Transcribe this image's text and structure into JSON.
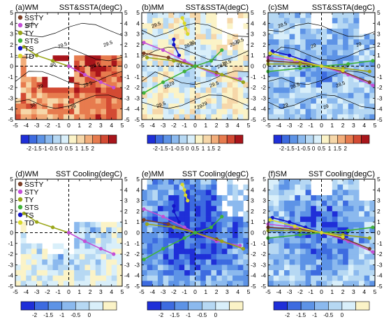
{
  "colors": {
    "SSTY": "#7b3f27",
    "STY": "#c44fd6",
    "TY": "#9aa618",
    "STS": "#3fb23a",
    "TS": "#1313c8",
    "TD": "#d8d82a",
    "sst_diverging": [
      "#1f2fd8",
      "#3d6be0",
      "#5d93e6",
      "#8bb9ee",
      "#b6d8f3",
      "#d9effa",
      "#fbf3c7",
      "#f6d7a9",
      "#f2ad7a",
      "#e77b4e",
      "#d34a33",
      "#a8151b"
    ],
    "cooling": [
      "#1f2fd8",
      "#3d6be0",
      "#5d93e6",
      "#8bb9ee",
      "#b6d8f3",
      "#d9effa",
      "#fbf3c7"
    ]
  },
  "legend": [
    "SSTY",
    "STY",
    "TY",
    "STS",
    "TS",
    "TD"
  ],
  "colorbar_sst": {
    "labels": [
      "-2",
      "-1.5",
      "-1",
      "-0.5",
      "0",
      "0.5",
      "1",
      "1.5",
      "2"
    ]
  },
  "colorbar_cool": {
    "labels": [
      "-2",
      "-1.5",
      "-1",
      "-0.5",
      "0"
    ]
  },
  "chart_data": [
    {
      "type": "heatmap",
      "panel": "(a)WM",
      "title": "SST&SSTA(degC)",
      "xlim": [
        -5,
        5
      ],
      "ylim": [
        -5,
        5
      ],
      "xticks": [
        "-5",
        "-4",
        "-3",
        "-2",
        "-1",
        "0",
        "1",
        "2",
        "3",
        "4",
        "5"
      ],
      "yticks": [
        "5",
        "4",
        "3",
        "2",
        "1",
        "0",
        "-1",
        "-2",
        "-3",
        "-4",
        "-5"
      ],
      "contour_labels": [
        "29.5",
        "29.5",
        "29.5",
        "29",
        "29",
        "29.5",
        "30",
        "29.5",
        "30"
      ],
      "tracks": [
        {
          "category": "TY",
          "points": [
            [
              -4.2,
              1.8
            ],
            [
              -3,
              1
            ],
            [
              -1.5,
              0.5
            ],
            [
              0,
              0
            ]
          ]
        },
        {
          "category": "STY",
          "points": [
            [
              0,
              0
            ],
            [
              1.5,
              -0.8
            ],
            [
              3,
              -1.5
            ],
            [
              4.2,
              -2
            ]
          ]
        }
      ]
    },
    {
      "type": "heatmap",
      "panel": "(b)MM",
      "title": "SST&SSTA(degC)",
      "xlim": [
        -5,
        5
      ],
      "ylim": [
        -5,
        5
      ],
      "xticks": [
        "-5",
        "-4",
        "-3",
        "-2",
        "-1",
        "0",
        "1",
        "2",
        "3",
        "4",
        "5"
      ],
      "yticks": [
        "5",
        "4",
        "3",
        "2",
        "1",
        "0",
        "-1",
        "-2",
        "-3",
        "-4",
        "-5"
      ],
      "contour_labels": [
        "29.5",
        "28.5",
        "28.5",
        "28",
        "29",
        "28.5",
        "29",
        "29.5",
        "29.5",
        "29",
        "28.5",
        "29",
        "29",
        "28.5"
      ],
      "tracks": [
        {
          "category": "TD",
          "points": [
            [
              -1.2,
              4.5
            ],
            [
              -1,
              4
            ],
            [
              -0.9,
              3.5
            ],
            [
              -0.7,
              3
            ]
          ]
        },
        {
          "category": "STY",
          "points": [
            [
              -4.8,
              2.2
            ],
            [
              -3,
              1.5
            ],
            [
              -1,
              0.5
            ],
            [
              0,
              0
            ],
            [
              2,
              -0.8
            ],
            [
              4.2,
              -1.2
            ]
          ]
        },
        {
          "category": "SSTY",
          "points": [
            [
              -4.8,
              1.2
            ],
            [
              -2.5,
              0.8
            ],
            [
              0,
              0
            ],
            [
              2,
              -0.6
            ],
            [
              4.5,
              -1.5
            ]
          ]
        },
        {
          "category": "TY",
          "points": [
            [
              -4.5,
              0.8
            ],
            [
              -2,
              0.5
            ],
            [
              0,
              0
            ],
            [
              2.5,
              -0.8
            ],
            [
              4.5,
              -1.5
            ]
          ]
        },
        {
          "category": "STS",
          "points": [
            [
              -4.8,
              -2.5
            ],
            [
              -3,
              -1.5
            ],
            [
              -1,
              -0.5
            ],
            [
              0,
              0
            ],
            [
              1.5,
              0.5
            ],
            [
              2.5,
              1.5
            ]
          ]
        },
        {
          "category": "TS",
          "points": [
            [
              -2,
              2.5
            ],
            [
              -2,
              2
            ],
            [
              -1.5,
              1
            ]
          ]
        }
      ]
    },
    {
      "type": "heatmap",
      "panel": "(c)SM",
      "title": "SST&SSTA(degC)",
      "xlim": [
        -5,
        5
      ],
      "ylim": [
        -5,
        5
      ],
      "xticks": [
        "-5",
        "-4",
        "-3",
        "-2",
        "-1",
        "0",
        "1",
        "2",
        "3",
        "4",
        "5"
      ],
      "yticks": [
        "5",
        "4",
        "3",
        "2",
        "1",
        "0",
        "-1",
        "-2",
        "-3",
        "-4",
        "-5"
      ],
      "contour_labels": [
        "28.5",
        "29",
        "29",
        "28.5",
        "29",
        "29",
        "29",
        "28.5",
        "29"
      ],
      "tracks": [
        {
          "category": "STY",
          "points": [
            [
              -5,
              0.8
            ],
            [
              -2.5,
              0.5
            ],
            [
              0,
              0
            ],
            [
              2.5,
              -0.8
            ],
            [
              4.8,
              -1.8
            ]
          ]
        },
        {
          "category": "SSTY",
          "points": [
            [
              -5,
              0.5
            ],
            [
              -2,
              0.3
            ],
            [
              0,
              0
            ],
            [
              2,
              -0.5
            ],
            [
              4.5,
              -1.5
            ]
          ]
        },
        {
          "category": "TY",
          "points": [
            [
              -5,
              0.2
            ],
            [
              -2,
              0.2
            ],
            [
              0,
              0
            ],
            [
              2,
              -0.2
            ],
            [
              4.5,
              -0.5
            ]
          ]
        },
        {
          "category": "STS",
          "points": [
            [
              -5,
              -0.5
            ],
            [
              -2,
              -0.2
            ],
            [
              0,
              0
            ],
            [
              2.5,
              0.2
            ],
            [
              4.8,
              0.5
            ]
          ]
        },
        {
          "category": "TS",
          "points": [
            [
              -4.6,
              1.4
            ],
            [
              -3,
              1
            ],
            [
              -1.5,
              0.5
            ],
            [
              0,
              0
            ]
          ]
        },
        {
          "category": "TD",
          "points": [
            [
              -4.8,
              1.2
            ],
            [
              -2.5,
              0.6
            ],
            [
              0,
              0
            ],
            [
              2,
              -0.4
            ]
          ]
        }
      ]
    },
    {
      "type": "heatmap",
      "panel": "(d)WM",
      "title": "SST Cooling(degC)",
      "xlim": [
        -5,
        5
      ],
      "ylim": [
        -5,
        5
      ],
      "xticks": [
        "-5",
        "-4",
        "-3",
        "-2",
        "-1",
        "0",
        "1",
        "2",
        "3",
        "4",
        "5"
      ],
      "yticks": [
        "5",
        "4",
        "3",
        "2",
        "1",
        "0",
        "-1",
        "-2",
        "-3",
        "-4",
        "-5"
      ],
      "tracks": [
        {
          "category": "TY",
          "points": [
            [
              -4.2,
              1.8
            ],
            [
              -3,
              1
            ],
            [
              -1.5,
              0.5
            ],
            [
              0,
              0
            ]
          ]
        },
        {
          "category": "STY",
          "points": [
            [
              0,
              0
            ],
            [
              1.5,
              -0.8
            ],
            [
              3,
              -1.5
            ],
            [
              4.2,
              -2
            ]
          ]
        }
      ]
    },
    {
      "type": "heatmap",
      "panel": "(e)MM",
      "title": "SST Cooling(degC)",
      "xlim": [
        -5,
        5
      ],
      "ylim": [
        -5,
        5
      ],
      "xticks": [
        "-5",
        "-4",
        "-3",
        "-2",
        "-1",
        "0",
        "1",
        "2",
        "3",
        "4",
        "5"
      ],
      "yticks": [
        "5",
        "4",
        "3",
        "2",
        "1",
        "0",
        "-1",
        "-2",
        "-3",
        "-4",
        "-5"
      ],
      "tracks": [
        {
          "category": "TD",
          "points": [
            [
              -1.2,
              4.5
            ],
            [
              -1,
              4
            ],
            [
              -0.9,
              3.5
            ],
            [
              -0.7,
              3
            ]
          ]
        },
        {
          "category": "STY",
          "points": [
            [
              -4.8,
              2.2
            ],
            [
              -3,
              1.5
            ],
            [
              -1,
              0.5
            ],
            [
              0,
              0
            ],
            [
              2,
              -0.8
            ],
            [
              4.2,
              -1.2
            ]
          ]
        },
        {
          "category": "SSTY",
          "points": [
            [
              -4.8,
              1.2
            ],
            [
              -2.5,
              0.8
            ],
            [
              0,
              0
            ],
            [
              2,
              -0.6
            ],
            [
              4.5,
              -1.5
            ]
          ]
        },
        {
          "category": "TY",
          "points": [
            [
              -4.5,
              0.8
            ],
            [
              -2,
              0.5
            ],
            [
              0,
              0
            ],
            [
              2.5,
              -0.8
            ],
            [
              4.5,
              -1.5
            ]
          ]
        },
        {
          "category": "STS",
          "points": [
            [
              -4.8,
              -2.5
            ],
            [
              -3,
              -1.5
            ],
            [
              -1,
              -0.5
            ],
            [
              0,
              0
            ],
            [
              1.5,
              0.5
            ],
            [
              2.5,
              1.5
            ]
          ]
        },
        {
          "category": "TS",
          "points": [
            [
              -2,
              2.5
            ],
            [
              -2,
              2
            ],
            [
              -1.5,
              1
            ]
          ]
        }
      ]
    },
    {
      "type": "heatmap",
      "panel": "(f)SM",
      "title": "SST Cooling(degC)",
      "xlim": [
        -5,
        5
      ],
      "ylim": [
        -5,
        5
      ],
      "xticks": [
        "-5",
        "-4",
        "-3",
        "-2",
        "-1",
        "0",
        "1",
        "2",
        "3",
        "4",
        "5"
      ],
      "yticks": [
        "5",
        "4",
        "3",
        "2",
        "1",
        "0",
        "-1",
        "-2",
        "-3",
        "-4",
        "-5"
      ],
      "tracks": [
        {
          "category": "STY",
          "points": [
            [
              -5,
              0.8
            ],
            [
              -2.5,
              0.5
            ],
            [
              0,
              0
            ],
            [
              2.5,
              -0.8
            ],
            [
              4.8,
              -1.8
            ]
          ]
        },
        {
          "category": "SSTY",
          "points": [
            [
              -5,
              0.5
            ],
            [
              -2,
              0.3
            ],
            [
              0,
              0
            ],
            [
              2,
              -0.5
            ],
            [
              4.5,
              -1.5
            ]
          ]
        },
        {
          "category": "TY",
          "points": [
            [
              -5,
              0.2
            ],
            [
              -2,
              0.2
            ],
            [
              0,
              0
            ],
            [
              2,
              -0.2
            ],
            [
              4.5,
              -0.5
            ]
          ]
        },
        {
          "category": "STS",
          "points": [
            [
              -5,
              -0.5
            ],
            [
              -2,
              -0.2
            ],
            [
              0,
              0
            ],
            [
              2.5,
              0.2
            ],
            [
              4.8,
              0.5
            ]
          ]
        },
        {
          "category": "TS",
          "points": [
            [
              -4.6,
              1.4
            ],
            [
              -3,
              1
            ],
            [
              -1.5,
              0.5
            ],
            [
              0,
              0
            ]
          ]
        },
        {
          "category": "TD",
          "points": [
            [
              -4.8,
              1.2
            ],
            [
              -2.5,
              0.6
            ],
            [
              0,
              0
            ],
            [
              2,
              -0.4
            ]
          ]
        }
      ]
    }
  ]
}
